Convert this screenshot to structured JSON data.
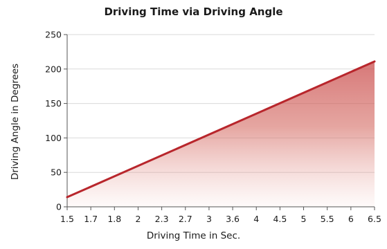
{
  "chart_data": {
    "type": "area",
    "title": "Driving Time via Driving Angle",
    "xlabel": "Driving Time in Sec.",
    "ylabel": "Driving Angle in Degrees",
    "categories": [
      "1.5",
      "1.7",
      "1.8",
      "2",
      "2.3",
      "2.7",
      "3",
      "3.6",
      "4",
      "4.5",
      "5",
      "5.5",
      "6",
      "6.5"
    ],
    "x_range": [
      1.5,
      6.5
    ],
    "ylim": [
      0,
      250
    ],
    "y_ticks": [
      0,
      50,
      100,
      150,
      200,
      250
    ],
    "grid": "horizontal",
    "series": [
      {
        "x": [
          1.5,
          6.5
        ],
        "values": [
          14,
          211
        ]
      }
    ],
    "colors": {
      "line": "#b8262c",
      "fill": "#c94a4a"
    }
  }
}
